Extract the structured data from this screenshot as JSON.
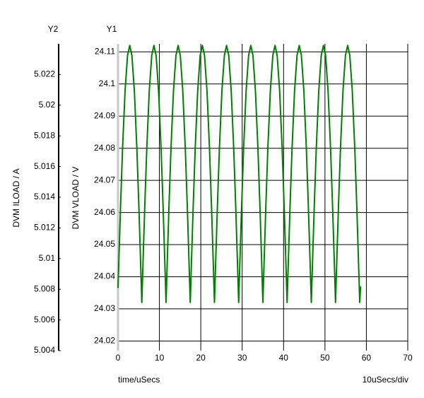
{
  "chart_data": {
    "type": "line",
    "y_axis_name": "Y1",
    "y2_axis_name": "Y2",
    "y_label": "DVM VLOAD / V",
    "y2_label": "DVM ILOAD / A",
    "x_label": "time/uSecs",
    "x_scale_note": "10uSecs/div",
    "xlim": [
      0,
      70
    ],
    "xticks": [
      0,
      10,
      20,
      30,
      40,
      50,
      60,
      70
    ],
    "ylim": [
      24.017,
      24.1125
    ],
    "yticks": [
      24.02,
      24.03,
      24.04,
      24.05,
      24.06,
      24.07,
      24.08,
      24.09,
      24.1,
      24.11
    ],
    "y2lim": [
      5.004,
      5.024
    ],
    "y2ticks": [
      5.004,
      5.006,
      5.008,
      5.01,
      5.012,
      5.014,
      5.016,
      5.018,
      5.02,
      5.022
    ],
    "grid": true,
    "x": [
      0,
      0.2,
      0.6,
      1.1,
      1.7,
      2.3,
      2.83,
      3.35,
      3.95,
      4.55,
      5.05,
      5.45,
      5.75,
      6.05,
      6.45,
      6.95,
      7.55,
      8.15,
      8.68,
      9.2,
      9.8,
      10.4,
      10.9,
      11.3,
      11.6,
      11.9,
      12.3,
      12.8,
      13.4,
      14.0,
      14.53,
      15.05,
      15.65,
      16.25,
      16.75,
      17.15,
      17.45,
      17.75,
      18.15,
      18.65,
      19.25,
      19.85,
      20.38,
      20.9,
      21.5,
      22.1,
      22.6,
      23.0,
      23.3,
      23.6,
      24.0,
      24.5,
      25.1,
      25.7,
      26.23,
      26.75,
      27.35,
      27.95,
      28.45,
      28.85,
      29.15,
      29.45,
      29.85,
      30.35,
      30.95,
      31.55,
      32.08,
      32.6,
      33.2,
      33.8,
      34.3,
      34.7,
      35.0,
      35.3,
      35.7,
      36.2,
      36.8,
      37.4,
      37.93,
      38.45,
      39.05,
      39.65,
      40.15,
      40.55,
      40.85,
      41.15,
      41.55,
      42.05,
      42.65,
      43.25,
      43.78,
      44.3,
      44.9,
      45.5,
      46.0,
      46.4,
      46.7,
      47.0,
      47.4,
      47.9,
      48.5,
      49.1,
      49.63,
      50.15,
      50.75,
      51.35,
      51.85,
      52.25,
      52.55,
      52.85,
      53.25,
      53.75,
      54.35,
      54.95,
      55.48,
      56.0,
      56.6,
      57.2,
      57.7,
      58.1,
      58.4,
      58.6
    ],
    "series": [
      {
        "name": "DVM VLOAD",
        "color": "#008000",
        "values": [
          24.0365,
          24.0448,
          24.0614,
          24.08,
          24.0978,
          24.1089,
          24.112,
          24.1089,
          24.0978,
          24.08,
          24.0614,
          24.0448,
          24.032,
          24.0448,
          24.0614,
          24.08,
          24.0978,
          24.1089,
          24.112,
          24.1089,
          24.0978,
          24.08,
          24.0614,
          24.0448,
          24.032,
          24.0448,
          24.0614,
          24.08,
          24.0978,
          24.1089,
          24.112,
          24.1089,
          24.0978,
          24.08,
          24.0614,
          24.0448,
          24.032,
          24.0448,
          24.0614,
          24.08,
          24.0978,
          24.1089,
          24.112,
          24.1089,
          24.0978,
          24.08,
          24.0614,
          24.0448,
          24.032,
          24.0448,
          24.0614,
          24.08,
          24.0978,
          24.1089,
          24.112,
          24.1089,
          24.0978,
          24.08,
          24.0614,
          24.0448,
          24.032,
          24.0448,
          24.0614,
          24.08,
          24.0978,
          24.1089,
          24.112,
          24.1089,
          24.0978,
          24.08,
          24.0614,
          24.0448,
          24.032,
          24.0448,
          24.0614,
          24.08,
          24.0978,
          24.1089,
          24.112,
          24.1089,
          24.0978,
          24.08,
          24.0614,
          24.0448,
          24.032,
          24.0448,
          24.0614,
          24.08,
          24.0978,
          24.1089,
          24.112,
          24.1089,
          24.0978,
          24.08,
          24.0614,
          24.0448,
          24.032,
          24.0448,
          24.0614,
          24.08,
          24.0978,
          24.1089,
          24.112,
          24.1089,
          24.0978,
          24.08,
          24.0614,
          24.0448,
          24.032,
          24.0448,
          24.0614,
          24.08,
          24.0978,
          24.1089,
          24.112,
          24.1089,
          24.0978,
          24.08,
          24.0614,
          24.0448,
          24.032,
          24.037
        ]
      }
    ]
  }
}
